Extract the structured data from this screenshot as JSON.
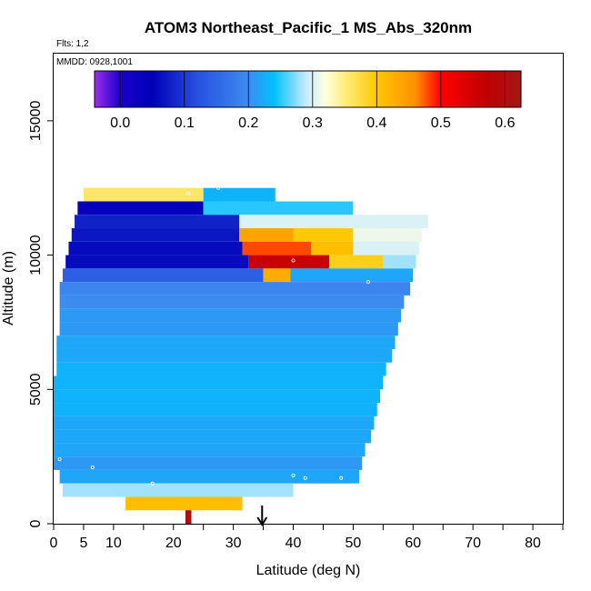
{
  "chart_data": {
    "type": "heatmap",
    "title": "ATOM3 Northeast_Pacific_1 MS_Abs_320nm",
    "flights_note": "Flts: 1,2",
    "dates_note": "MMDD: 0928,1001",
    "xlabel": "Latitude (deg N)",
    "ylabel": "Altitude (m)",
    "xlim": [
      0,
      85
    ],
    "ylim": [
      0,
      17500
    ],
    "x_ticks": [
      0,
      5,
      10,
      20,
      30,
      40,
      50,
      60,
      70,
      80
    ],
    "y_ticks": [
      0,
      5000,
      10000,
      15000
    ],
    "colorbar": {
      "range": [
        -0.04,
        0.625
      ],
      "ticks": [
        0.0,
        0.1,
        0.2,
        0.3,
        0.4,
        0.5,
        0.6
      ],
      "tick_labels": [
        "0.0",
        "0.1",
        "0.2",
        "0.3",
        "0.4",
        "0.5",
        "0.6"
      ],
      "stops": [
        {
          "v": -0.04,
          "c": "#9d2df0"
        },
        {
          "v": 0.0,
          "c": "#1a00c8"
        },
        {
          "v": 0.05,
          "c": "#0000b8"
        },
        {
          "v": 0.12,
          "c": "#2850e0"
        },
        {
          "v": 0.2,
          "c": "#3c8cf0"
        },
        {
          "v": 0.24,
          "c": "#00c0ff"
        },
        {
          "v": 0.29,
          "c": "#c8eaff"
        },
        {
          "v": 0.32,
          "c": "#ffffe0"
        },
        {
          "v": 0.35,
          "c": "#ffee80"
        },
        {
          "v": 0.4,
          "c": "#ffc800"
        },
        {
          "v": 0.46,
          "c": "#ff9000"
        },
        {
          "v": 0.5,
          "c": "#ff0000"
        },
        {
          "v": 0.57,
          "c": "#c00000"
        },
        {
          "v": 0.625,
          "c": "#a01818"
        }
      ]
    },
    "blocks": [
      {
        "x0": 5.0,
        "x1": 25.0,
        "y0": 12000,
        "y1": 12500,
        "v": 0.36
      },
      {
        "x0": 25.0,
        "x1": 37.0,
        "y0": 12000,
        "y1": 12500,
        "v": 0.23
      },
      {
        "x0": 4.0,
        "x1": 25.0,
        "y0": 11500,
        "y1": 12000,
        "v": 0.04
      },
      {
        "x0": 25.0,
        "x1": 50.0,
        "y0": 11500,
        "y1": 12000,
        "v": 0.25
      },
      {
        "x0": 3.5,
        "x1": 31.0,
        "y0": 11000,
        "y1": 11500,
        "v": 0.08
      },
      {
        "x0": 31.0,
        "x1": 62.5,
        "y0": 11000,
        "y1": 11500,
        "v": 0.3
      },
      {
        "x0": 3.0,
        "x1": 31.0,
        "y0": 10500,
        "y1": 11000,
        "v": 0.07
      },
      {
        "x0": 31.0,
        "x1": 40.0,
        "y0": 10500,
        "y1": 11000,
        "v": 0.44
      },
      {
        "x0": 40.0,
        "x1": 50.0,
        "y0": 10500,
        "y1": 11000,
        "v": 0.4
      },
      {
        "x0": 50.0,
        "x1": 61.5,
        "y0": 10500,
        "y1": 11000,
        "v": 0.31
      },
      {
        "x0": 2.5,
        "x1": 31.5,
        "y0": 10000,
        "y1": 10500,
        "v": 0.06
      },
      {
        "x0": 31.5,
        "x1": 43.0,
        "y0": 10000,
        "y1": 10500,
        "v": 0.48
      },
      {
        "x0": 43.0,
        "x1": 50.0,
        "y0": 10000,
        "y1": 10500,
        "v": 0.41
      },
      {
        "x0": 50.0,
        "x1": 61.0,
        "y0": 10000,
        "y1": 10500,
        "v": 0.3
      },
      {
        "x0": 2.0,
        "x1": 32.5,
        "y0": 9500,
        "y1": 10000,
        "v": 0.06
      },
      {
        "x0": 32.5,
        "x1": 46.0,
        "y0": 9500,
        "y1": 10000,
        "v": 0.56
      },
      {
        "x0": 46.0,
        "x1": 55.0,
        "y0": 9500,
        "y1": 10000,
        "v": 0.39
      },
      {
        "x0": 55.0,
        "x1": 60.5,
        "y0": 9500,
        "y1": 10000,
        "v": 0.28
      },
      {
        "x0": 1.5,
        "x1": 35.0,
        "y0": 9000,
        "y1": 9500,
        "v": 0.14
      },
      {
        "x0": 35.0,
        "x1": 39.5,
        "y0": 9000,
        "y1": 9500,
        "v": 0.43
      },
      {
        "x0": 39.5,
        "x1": 60.0,
        "y0": 9000,
        "y1": 9500,
        "v": 0.22
      },
      {
        "x0": 1.0,
        "x1": 59.5,
        "y0": 8500,
        "y1": 9000,
        "v": 0.19
      },
      {
        "x0": 1.0,
        "x1": 58.5,
        "y0": 8000,
        "y1": 8500,
        "v": 0.2
      },
      {
        "x0": 1.0,
        "x1": 58.0,
        "y0": 7500,
        "y1": 8000,
        "v": 0.21
      },
      {
        "x0": 1.0,
        "x1": 57.5,
        "y0": 7000,
        "y1": 7500,
        "v": 0.21
      },
      {
        "x0": 0.5,
        "x1": 57.0,
        "y0": 6500,
        "y1": 7000,
        "v": 0.22
      },
      {
        "x0": 0.5,
        "x1": 56.5,
        "y0": 6000,
        "y1": 6500,
        "v": 0.22
      },
      {
        "x0": 0.5,
        "x1": 55.5,
        "y0": 5500,
        "y1": 6000,
        "v": 0.23
      },
      {
        "x0": 0.0,
        "x1": 55.0,
        "y0": 5000,
        "y1": 5500,
        "v": 0.23
      },
      {
        "x0": 0.0,
        "x1": 54.5,
        "y0": 4500,
        "y1": 5000,
        "v": 0.23
      },
      {
        "x0": 0.0,
        "x1": 54.0,
        "y0": 4000,
        "y1": 4500,
        "v": 0.23
      },
      {
        "x0": 0.0,
        "x1": 53.5,
        "y0": 3500,
        "y1": 4000,
        "v": 0.22
      },
      {
        "x0": 0.0,
        "x1": 53.0,
        "y0": 3000,
        "y1": 3500,
        "v": 0.22
      },
      {
        "x0": 0.0,
        "x1": 52.0,
        "y0": 2500,
        "y1": 3000,
        "v": 0.22
      },
      {
        "x0": 0.0,
        "x1": 51.5,
        "y0": 2000,
        "y1": 2500,
        "v": 0.21
      },
      {
        "x0": 1.0,
        "x1": 51.0,
        "y0": 1500,
        "y1": 2000,
        "v": 0.22
      },
      {
        "x0": 1.5,
        "x1": 40.0,
        "y0": 1000,
        "y1": 1500,
        "v": 0.28
      },
      {
        "x0": 12.0,
        "x1": 31.5,
        "y0": 500,
        "y1": 1000,
        "v": 0.41
      },
      {
        "x0": 22.0,
        "x1": 23.0,
        "y0": 0,
        "y1": 500,
        "v": 0.6
      }
    ],
    "sample_points": [
      {
        "x": 1.0,
        "y": 2400
      },
      {
        "x": 6.5,
        "y": 2100
      },
      {
        "x": 16.5,
        "y": 1500
      },
      {
        "x": 22.5,
        "y": 12300
      },
      {
        "x": 27.5,
        "y": 12500
      },
      {
        "x": 40.0,
        "y": 9800
      },
      {
        "x": 40.0,
        "y": 1800
      },
      {
        "x": 42.0,
        "y": 1700
      },
      {
        "x": 48.0,
        "y": 1700
      },
      {
        "x": 52.5,
        "y": 9000
      }
    ],
    "arrow_marker": {
      "x": 34.8,
      "label": ""
    }
  }
}
